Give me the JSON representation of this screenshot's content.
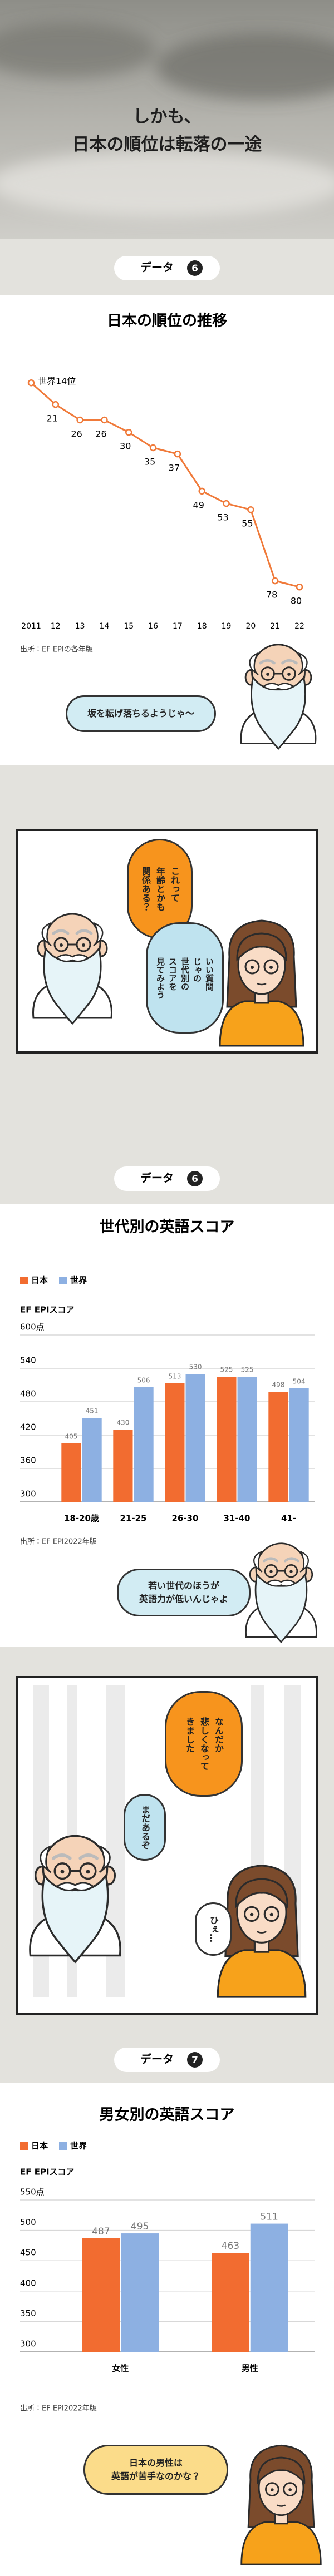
{
  "header": {
    "title": "しかも、\n日本の順位は転落の一途"
  },
  "sections": [
    {
      "label": "データ",
      "number": 6
    },
    {
      "label": "データ",
      "number": 6
    },
    {
      "label": "データ",
      "number": 7
    }
  ],
  "chart_data": [
    {
      "type": "line",
      "title": "日本の順位の推移",
      "categories": [
        "2011",
        "12",
        "13",
        "14",
        "15",
        "16",
        "17",
        "18",
        "19",
        "20",
        "21",
        "22"
      ],
      "values": [
        14,
        21,
        26,
        26,
        30,
        35,
        37,
        49,
        53,
        55,
        78,
        80
      ],
      "value_labels": [
        "世界14位",
        "21",
        "26",
        "26",
        "30",
        "35",
        "37",
        "49",
        "53",
        "55",
        "78",
        "80"
      ],
      "color": "#f07a3a",
      "ylim": [
        10,
        85
      ],
      "y_inverted": true,
      "source": "出所：EF EPIの各年版"
    },
    {
      "type": "bar",
      "title": "世代別の英語スコア",
      "y_label": "EF EPIスコア",
      "categories": [
        "18-20歳",
        "21-25",
        "26-30",
        "31-40",
        "41-"
      ],
      "series": [
        {
          "name": "日本",
          "color": "#f26c30",
          "values": [
            405,
            430,
            513,
            525,
            498
          ]
        },
        {
          "name": "世界",
          "color": "#8db0e2",
          "values": [
            451,
            506,
            530,
            525,
            504
          ]
        }
      ],
      "ylim": [
        300,
        600
      ],
      "yticks": [
        300,
        360,
        420,
        480,
        540,
        {
          "value": 600,
          "label": "600点"
        }
      ],
      "grid": true,
      "legend": "top-left",
      "source": "出所：EF EPI2022年版"
    },
    {
      "type": "bar",
      "title": "男女別の英語スコア",
      "y_label": "EF EPIスコア",
      "categories": [
        "女性",
        "男性"
      ],
      "series": [
        {
          "name": "日本",
          "color": "#f26c30",
          "values": [
            487,
            463
          ]
        },
        {
          "name": "世界",
          "color": "#8db0e2",
          "values": [
            495,
            511
          ]
        }
      ],
      "ylim": [
        300,
        550
      ],
      "yticks": [
        300,
        350,
        400,
        450,
        500,
        {
          "value": 550,
          "label": "550点"
        }
      ],
      "grid": true,
      "legend": "top-left",
      "source": "出所：EF EPI2022年版"
    }
  ],
  "bubbles": [
    "坂を転げ落ちるようじゃ〜",
    "これって\n年齢とかも\n関係ある？",
    "いい質問\nじゃの\n世代別の\nスコアを\n見てみよう",
    "若い世代のほうが\n英語力が低いんじゃよ",
    "なんだか\n悲しくなって\nきました",
    "まだあるぞ",
    "ひぇ…",
    "日本の男性は\n英語が苦手なのかな？"
  ]
}
